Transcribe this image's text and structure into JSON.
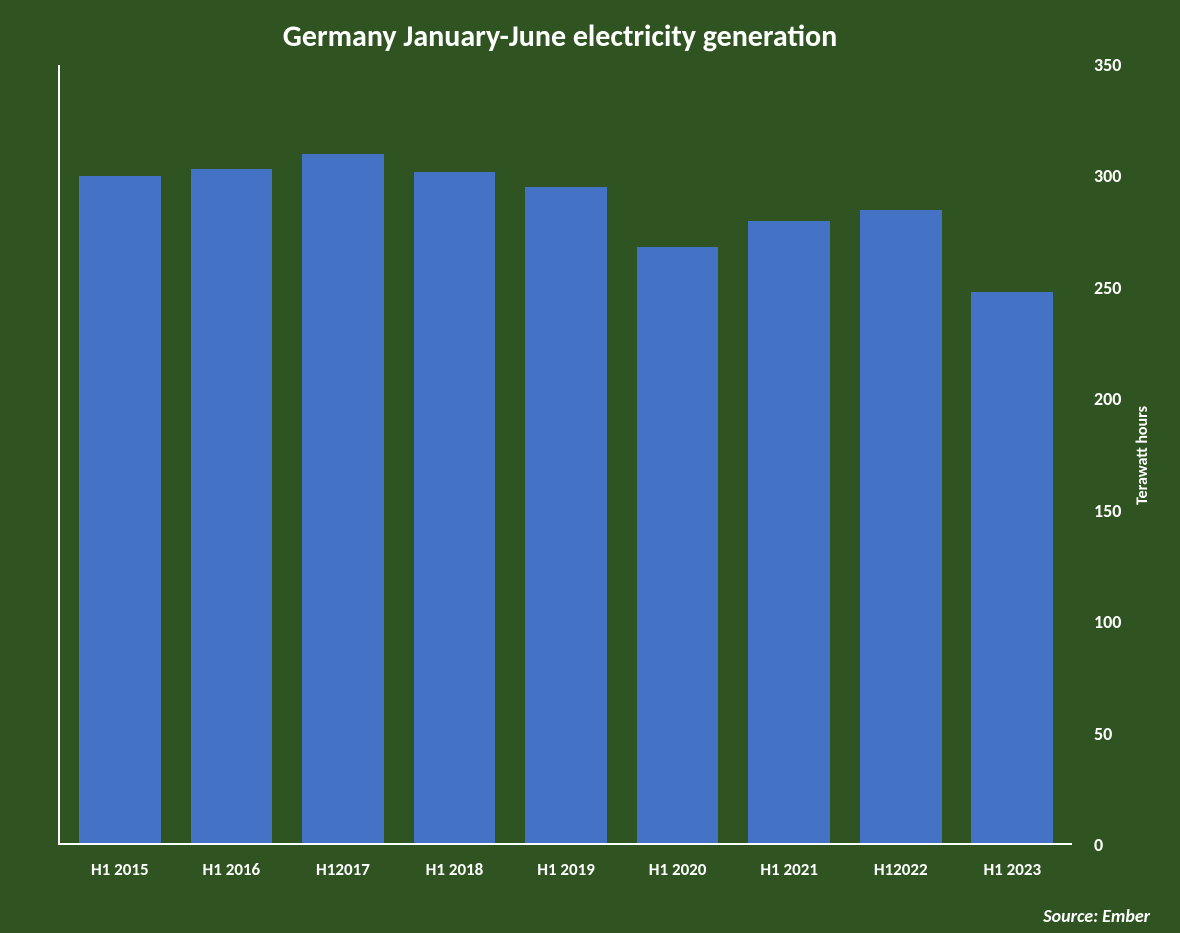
{
  "chart": {
    "type": "bar",
    "title": "Germany January-June electricity generation",
    "title_fontsize": 30,
    "title_color": "#ffffff",
    "background_color": "#2f5421",
    "axis_line_color": "#ffffff",
    "tick_label_color": "#ffffff",
    "x_tick_fontsize": 17,
    "y_tick_fontsize": 18,
    "y_axis": {
      "label": "Terawatt hours",
      "label_fontsize": 16,
      "position": "right",
      "ylim": [
        0,
        350
      ],
      "ytick_step": 50,
      "ticks": [
        0,
        50,
        100,
        150,
        200,
        250,
        300,
        350
      ]
    },
    "categories": [
      "H1 2015",
      "H1 2016",
      "H12017",
      "H1 2018",
      "H1 2019",
      "H1 2020",
      "H1 2021",
      "H12022",
      "H1 2023"
    ],
    "values": [
      300,
      303,
      310,
      302,
      295,
      268,
      280,
      285,
      248
    ],
    "bar_color": "#4472c4",
    "bar_width_ratio": 0.82,
    "source_label": "Source: Ember",
    "source_color": "#ffffff",
    "source_fontsize": 18
  }
}
